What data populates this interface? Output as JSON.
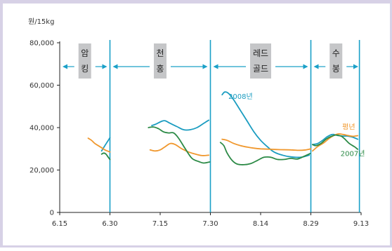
{
  "chart_data": {
    "type": "line",
    "ylabel": "원/15kg",
    "ylim": [
      0,
      80000
    ],
    "yticks": [
      "0",
      "20,000",
      "40,000",
      "60,000",
      "80,000"
    ],
    "xlim": [
      0,
      90
    ],
    "xticks": [
      {
        "pos": 0,
        "label": "6.15"
      },
      {
        "pos": 15,
        "label": "6.30"
      },
      {
        "pos": 30,
        "label": "7.15"
      },
      {
        "pos": 45,
        "label": "7.30"
      },
      {
        "pos": 60,
        "label": "8.14"
      },
      {
        "pos": 75,
        "label": "8.29"
      },
      {
        "pos": 90,
        "label": "9.13"
      }
    ],
    "grid": false,
    "periods": [
      {
        "label": "암킹",
        "start": 0,
        "end": 15
      },
      {
        "label": "천홍",
        "start": 15,
        "end": 45
      },
      {
        "label": "레드골드",
        "start": 45,
        "end": 75
      },
      {
        "label": "수봉",
        "start": 75,
        "end": 90
      }
    ],
    "period_dividers": [
      15,
      45,
      75,
      89.5
    ],
    "series": [
      {
        "name": "2008년",
        "color": "#1a9cc0",
        "segments": [
          [
            [
              12.5,
              29000
            ],
            [
              13.5,
              31500
            ],
            [
              14.5,
              34000
            ],
            [
              15.0,
              35200
            ]
          ],
          [
            [
              27.5,
              41000
            ],
            [
              28.5,
              41500
            ],
            [
              30.5,
              43000
            ],
            [
              31.5,
              43200
            ],
            [
              33.0,
              42000
            ],
            [
              35.0,
              40500
            ],
            [
              37.0,
              39000
            ],
            [
              39.0,
              39000
            ],
            [
              41.0,
              40000
            ],
            [
              43.0,
              42000
            ],
            [
              44.5,
              43500
            ]
          ],
          [
            [
              48.5,
              55500
            ],
            [
              49.3,
              56800
            ],
            [
              50.5,
              56000
            ],
            [
              52.0,
              53000
            ],
            [
              54.0,
              48000
            ],
            [
              56.0,
              43000
            ],
            [
              58.0,
              38000
            ],
            [
              60.0,
              34000
            ],
            [
              62.0,
              31000
            ],
            [
              64.0,
              28500
            ],
            [
              66.5,
              27000
            ],
            [
              69.0,
              26200
            ],
            [
              72.0,
              26000
            ],
            [
              74.5,
              27000
            ]
          ],
          [
            [
              75.5,
              32000
            ],
            [
              77.0,
              32500
            ],
            [
              78.5,
              34000
            ],
            [
              80.0,
              35800
            ],
            [
              81.5,
              36800
            ],
            [
              83.0,
              36300
            ],
            [
              84.5,
              36000
            ],
            [
              86.0,
              36000
            ],
            [
              87.5,
              35500
            ],
            [
              89.0,
              34500
            ]
          ]
        ]
      },
      {
        "name": "평년",
        "color": "#f0982e",
        "segments": [
          [
            [
              8.5,
              35000
            ],
            [
              9.5,
              34000
            ],
            [
              10.5,
              32500
            ],
            [
              11.5,
              31500
            ],
            [
              12.5,
              30500
            ],
            [
              13.5,
              29500
            ],
            [
              15.0,
              28500
            ]
          ],
          [
            [
              27.0,
              29500
            ],
            [
              28.5,
              29000
            ],
            [
              30.0,
              29500
            ],
            [
              31.5,
              31000
            ],
            [
              33.0,
              32500
            ],
            [
              34.5,
              32000
            ],
            [
              36.5,
              30000
            ],
            [
              38.5,
              28500
            ],
            [
              40.5,
              27500
            ],
            [
              42.5,
              26800
            ],
            [
              44.5,
              27000
            ]
          ],
          [
            [
              48.5,
              34500
            ],
            [
              50.0,
              34000
            ],
            [
              52.0,
              32500
            ],
            [
              54.0,
              31500
            ],
            [
              56.0,
              30800
            ],
            [
              58.0,
              30300
            ],
            [
              60.0,
              30000
            ],
            [
              63.0,
              29800
            ],
            [
              66.0,
              29600
            ],
            [
              69.0,
              29500
            ],
            [
              71.5,
              29300
            ],
            [
              73.5,
              29500
            ],
            [
              75.0,
              30000
            ]
          ],
          [
            [
              75.5,
              29000
            ],
            [
              77.0,
              31000
            ],
            [
              79.0,
              33000
            ],
            [
              81.0,
              35500
            ],
            [
              83.0,
              37000
            ],
            [
              84.5,
              36800
            ],
            [
              86.0,
              36300
            ],
            [
              87.5,
              35900
            ],
            [
              89.0,
              36200
            ]
          ]
        ]
      },
      {
        "name": "2007년",
        "color": "#2c8a46",
        "segments": [
          [
            [
              12.5,
              27500
            ],
            [
              13.2,
              28000
            ],
            [
              13.8,
              27500
            ],
            [
              14.5,
              26000
            ],
            [
              15.0,
              25000
            ]
          ],
          [
            [
              26.5,
              40000
            ],
            [
              28.0,
              40300
            ],
            [
              29.5,
              39500
            ],
            [
              31.0,
              38000
            ],
            [
              32.5,
              37500
            ],
            [
              34.0,
              37500
            ],
            [
              35.5,
              35000
            ],
            [
              37.5,
              30000
            ],
            [
              39.5,
              25500
            ],
            [
              41.5,
              24000
            ],
            [
              43.0,
              23300
            ],
            [
              44.8,
              23800
            ]
          ],
          [
            [
              48.0,
              33000
            ],
            [
              49.0,
              31500
            ],
            [
              50.0,
              28000
            ],
            [
              51.5,
              24500
            ],
            [
              53.0,
              22800
            ],
            [
              55.0,
              22500
            ],
            [
              57.0,
              23000
            ],
            [
              59.0,
              24500
            ],
            [
              61.0,
              26000
            ],
            [
              63.0,
              26000
            ],
            [
              65.0,
              25000
            ],
            [
              67.0,
              25000
            ],
            [
              69.0,
              25500
            ],
            [
              71.0,
              25200
            ],
            [
              73.0,
              26500
            ],
            [
              74.8,
              27800
            ]
          ],
          [
            [
              75.5,
              32000
            ],
            [
              76.5,
              31500
            ],
            [
              78.0,
              32500
            ],
            [
              79.5,
              34500
            ],
            [
              81.0,
              35800
            ],
            [
              82.5,
              36500
            ],
            [
              84.0,
              36000
            ],
            [
              85.0,
              34800
            ],
            [
              86.5,
              32500
            ],
            [
              88.0,
              31000
            ],
            [
              89.0,
              29800
            ]
          ]
        ]
      }
    ],
    "series_labels": [
      {
        "series": 0,
        "text": "2008년",
        "x": 54.0,
        "y": 53500
      },
      {
        "series": 1,
        "text": "평년",
        "x": 86.3,
        "y": 39200
      },
      {
        "series": 2,
        "text": "2007년",
        "x": 87.5,
        "y": 26600
      }
    ]
  }
}
